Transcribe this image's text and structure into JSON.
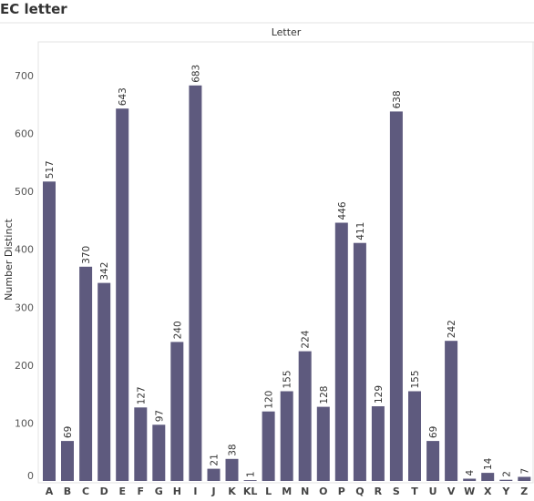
{
  "page_title": "EC letter",
  "chart_data": {
    "type": "bar",
    "column_header": "Letter",
    "ylabel": "Number Distinct",
    "ylim": [
      0,
      750
    ],
    "yticks": [
      0,
      100,
      200,
      300,
      400,
      500,
      600,
      700
    ],
    "grid": false,
    "bar_color": "#5e5a7e",
    "categories": [
      "A",
      "B",
      "C",
      "D",
      "E",
      "F",
      "G",
      "H",
      "I",
      "J",
      "K",
      "KL",
      "L",
      "M",
      "N",
      "O",
      "P",
      "Q",
      "R",
      "S",
      "T",
      "U",
      "V",
      "W",
      "X",
      "Y",
      "Z"
    ],
    "values": [
      517,
      69,
      370,
      342,
      643,
      127,
      97,
      240,
      683,
      21,
      38,
      1,
      120,
      155,
      224,
      128,
      446,
      411,
      129,
      638,
      155,
      69,
      242,
      4,
      14,
      2,
      7
    ]
  }
}
